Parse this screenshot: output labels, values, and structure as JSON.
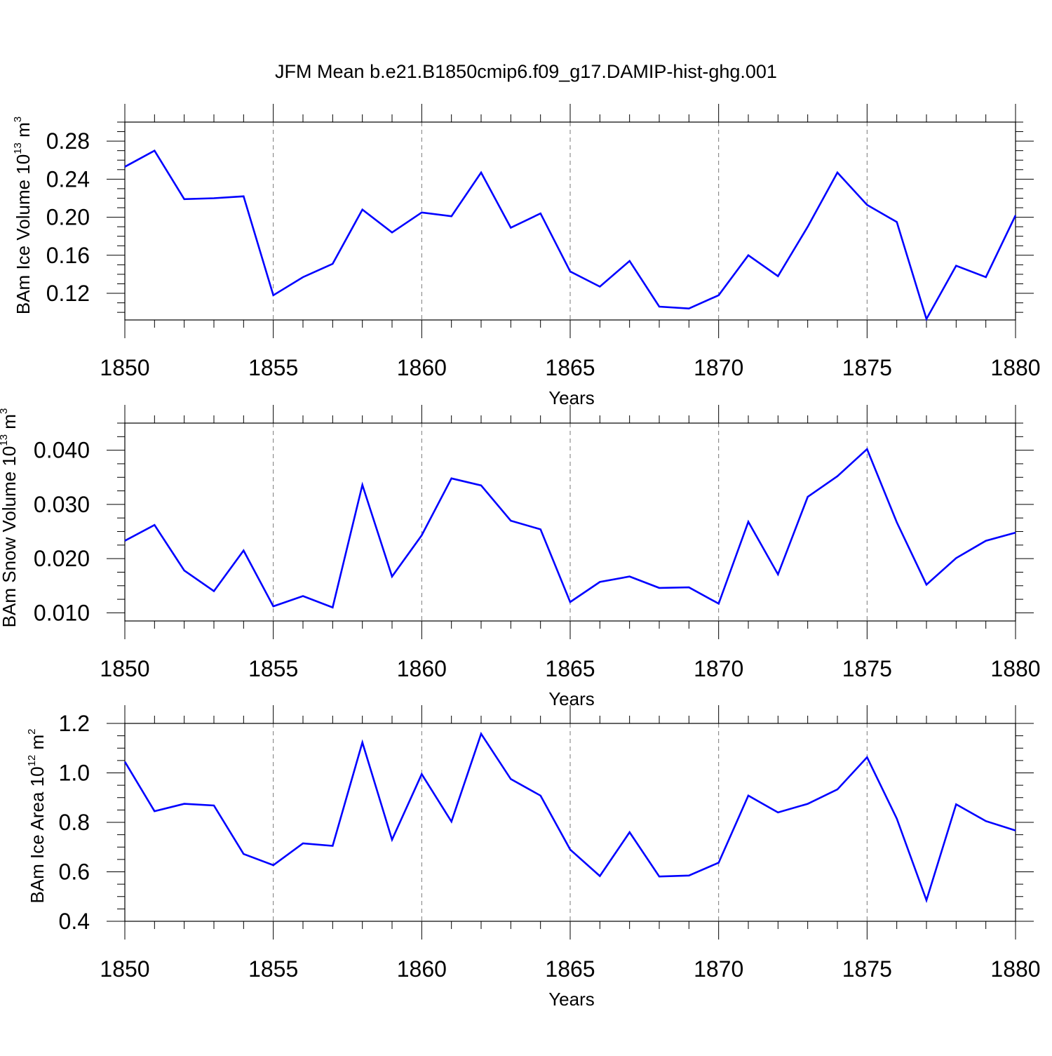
{
  "title": "JFM Mean b.e21.B1850cmip6.f09_g17.DAMIP-hist-ghg.001",
  "chart_data": [
    {
      "type": "line",
      "ylabel": {
        "base": "BAm Ice Volume 10",
        "exp": "13",
        "unit": " m",
        "unit_exp": "3"
      },
      "xlabel": "Years",
      "xlim": [
        1850,
        1880
      ],
      "ylim": [
        0.092,
        0.3
      ],
      "xticks": [
        "1850",
        "1855",
        "1860",
        "1865",
        "1870",
        "1875",
        "1880"
      ],
      "yticks": [
        "0.12",
        "0.16",
        "0.20",
        "0.24",
        "0.28"
      ],
      "grid": "dashed vertical",
      "series": [
        {
          "name": "BAm Ice Volume",
          "color": "#0000ff",
          "x": [
            1850,
            1851,
            1852,
            1853,
            1854,
            1855,
            1856,
            1857,
            1858,
            1859,
            1860,
            1861,
            1862,
            1863,
            1864,
            1865,
            1866,
            1867,
            1868,
            1869,
            1870,
            1871,
            1872,
            1873,
            1874,
            1875,
            1876,
            1877,
            1878,
            1879,
            1880
          ],
          "values": [
            0.253,
            0.27,
            0.219,
            0.22,
            0.222,
            0.118,
            0.137,
            0.151,
            0.208,
            0.184,
            0.205,
            0.201,
            0.247,
            0.189,
            0.204,
            0.143,
            0.127,
            0.154,
            0.106,
            0.104,
            0.118,
            0.16,
            0.138,
            0.19,
            0.247,
            0.213,
            0.195,
            0.093,
            0.149,
            0.137,
            0.202
          ]
        }
      ]
    },
    {
      "type": "line",
      "ylabel": {
        "base": "BAm Snow Volume 10",
        "exp": "13",
        "unit": " m",
        "unit_exp": "3"
      },
      "xlabel": "Years",
      "xlim": [
        1850,
        1880
      ],
      "ylim": [
        0.0085,
        0.045
      ],
      "xticks": [
        "1850",
        "1855",
        "1860",
        "1865",
        "1870",
        "1875",
        "1880"
      ],
      "yticks": [
        "0.010",
        "0.020",
        "0.030",
        "0.040"
      ],
      "grid": "dashed vertical",
      "series": [
        {
          "name": "BAm Snow Volume",
          "color": "#0000ff",
          "x": [
            1850,
            1851,
            1852,
            1853,
            1854,
            1855,
            1856,
            1857,
            1858,
            1859,
            1860,
            1861,
            1862,
            1863,
            1864,
            1865,
            1866,
            1867,
            1868,
            1869,
            1870,
            1871,
            1872,
            1873,
            1874,
            1875,
            1876,
            1877,
            1878,
            1879,
            1880
          ],
          "values": [
            0.0233,
            0.0262,
            0.0178,
            0.014,
            0.0215,
            0.0112,
            0.0131,
            0.011,
            0.0336,
            0.0167,
            0.0243,
            0.0348,
            0.0335,
            0.027,
            0.0254,
            0.012,
            0.0157,
            0.0167,
            0.0146,
            0.0147,
            0.0117,
            0.0268,
            0.0171,
            0.0314,
            0.0352,
            0.0402,
            0.0267,
            0.0152,
            0.0201,
            0.0233,
            0.0248
          ]
        }
      ]
    },
    {
      "type": "line",
      "ylabel": {
        "base": "BAm Ice Area 10",
        "exp": "12",
        "unit": " m",
        "unit_exp": "2"
      },
      "xlabel": "Years",
      "xlim": [
        1850,
        1880
      ],
      "ylim": [
        0.4,
        1.2
      ],
      "xticks": [
        "1850",
        "1855",
        "1860",
        "1865",
        "1870",
        "1875",
        "1880"
      ],
      "yticks": [
        "0.4",
        "0.6",
        "0.8",
        "1.0",
        "1.2"
      ],
      "grid": "dashed vertical",
      "series": [
        {
          "name": "BAm Ice Area",
          "color": "#0000ff",
          "x": [
            1850,
            1851,
            1852,
            1853,
            1854,
            1855,
            1856,
            1857,
            1858,
            1859,
            1860,
            1861,
            1862,
            1863,
            1864,
            1865,
            1866,
            1867,
            1868,
            1869,
            1870,
            1871,
            1872,
            1873,
            1874,
            1875,
            1876,
            1877,
            1878,
            1879,
            1880
          ],
          "values": [
            1.045,
            0.845,
            0.875,
            0.868,
            0.672,
            0.627,
            0.715,
            0.705,
            1.123,
            0.73,
            0.995,
            0.803,
            1.158,
            0.975,
            0.908,
            0.69,
            0.583,
            0.76,
            0.581,
            0.585,
            0.637,
            0.908,
            0.84,
            0.875,
            0.933,
            1.063,
            0.815,
            0.485,
            0.873,
            0.805,
            0.767
          ]
        }
      ]
    }
  ]
}
